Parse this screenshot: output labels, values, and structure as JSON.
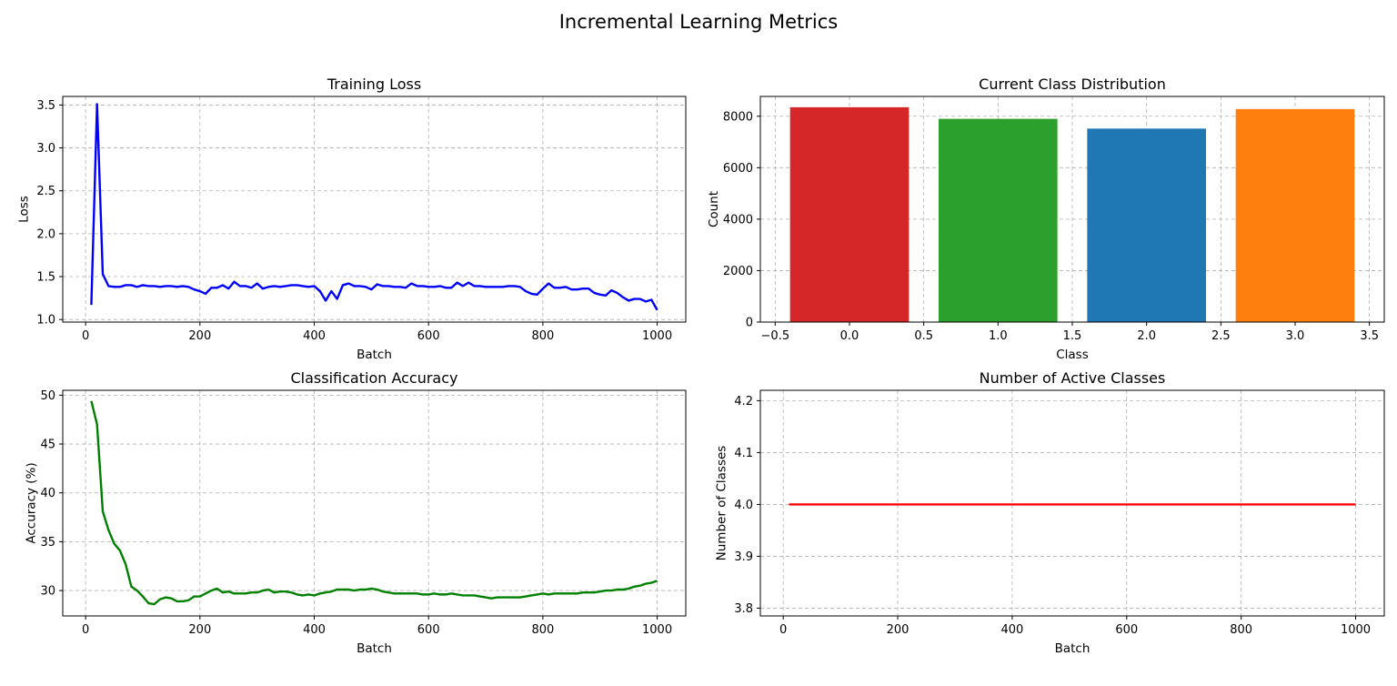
{
  "figure_title": "Incremental Learning Metrics",
  "colors": {
    "loss_line": "#0000ff",
    "accuracy_line": "#008000",
    "active_classes_line": "#ff0000",
    "class_0": "#d62728",
    "class_1": "#2ca02c",
    "class_2": "#1f77b4",
    "class_3": "#ff7f0e"
  },
  "chart_data": [
    {
      "id": "loss",
      "type": "line",
      "title": "Training Loss",
      "xlabel": "Batch",
      "ylabel": "Loss",
      "xlim": [
        -40,
        1050
      ],
      "ylim": [
        0.97,
        3.6
      ],
      "xticks": [
        0,
        200,
        400,
        600,
        800,
        1000
      ],
      "xtick_labels": [
        "0",
        "200",
        "400",
        "600",
        "800",
        "1000"
      ],
      "yticks": [
        1.0,
        1.5,
        2.0,
        2.5,
        3.0,
        3.5
      ],
      "ytick_labels": [
        "1.0",
        "1.5",
        "2.0",
        "2.5",
        "3.0",
        "3.5"
      ],
      "grid": true,
      "color": "#0000ff",
      "series": [
        {
          "x": [
            10,
            20,
            30,
            40,
            50,
            60,
            70,
            80,
            90,
            100,
            110,
            120,
            130,
            140,
            150,
            160,
            170,
            180,
            190,
            200,
            210,
            220,
            230,
            240,
            250,
            260,
            270,
            280,
            290,
            300,
            310,
            320,
            330,
            340,
            350,
            360,
            370,
            380,
            390,
            400,
            410,
            420,
            430,
            440,
            450,
            460,
            470,
            480,
            490,
            500,
            510,
            520,
            530,
            540,
            550,
            560,
            570,
            580,
            590,
            600,
            610,
            620,
            630,
            640,
            650,
            660,
            670,
            680,
            690,
            700,
            710,
            720,
            730,
            740,
            750,
            760,
            770,
            780,
            790,
            800,
            810,
            820,
            830,
            840,
            850,
            860,
            870,
            880,
            890,
            900,
            910,
            920,
            930,
            940,
            950,
            960,
            970,
            980,
            990,
            1000
          ],
          "y": [
            1.17,
            3.51,
            1.53,
            1.39,
            1.38,
            1.38,
            1.4,
            1.4,
            1.38,
            1.4,
            1.39,
            1.39,
            1.38,
            1.39,
            1.39,
            1.38,
            1.39,
            1.38,
            1.35,
            1.33,
            1.3,
            1.37,
            1.37,
            1.4,
            1.36,
            1.44,
            1.39,
            1.39,
            1.37,
            1.42,
            1.36,
            1.38,
            1.39,
            1.38,
            1.39,
            1.4,
            1.4,
            1.39,
            1.38,
            1.39,
            1.33,
            1.22,
            1.33,
            1.24,
            1.4,
            1.42,
            1.39,
            1.39,
            1.38,
            1.35,
            1.41,
            1.39,
            1.39,
            1.38,
            1.38,
            1.37,
            1.42,
            1.39,
            1.39,
            1.38,
            1.38,
            1.39,
            1.37,
            1.37,
            1.43,
            1.39,
            1.43,
            1.39,
            1.39,
            1.38,
            1.38,
            1.38,
            1.38,
            1.39,
            1.39,
            1.38,
            1.33,
            1.3,
            1.29,
            1.36,
            1.42,
            1.37,
            1.37,
            1.38,
            1.35,
            1.35,
            1.36,
            1.36,
            1.31,
            1.29,
            1.28,
            1.34,
            1.31,
            1.26,
            1.22,
            1.24,
            1.24,
            1.21,
            1.23,
            1.11
          ]
        }
      ]
    },
    {
      "id": "distribution",
      "type": "bar",
      "title": "Current Class Distribution",
      "xlabel": "Class",
      "ylabel": "Count",
      "categories": [
        0,
        1,
        2,
        3
      ],
      "values": [
        8350,
        7900,
        7520,
        8280
      ],
      "bar_colors": [
        "#d62728",
        "#2ca02c",
        "#1f77b4",
        "#ff7f0e"
      ],
      "bar_width": 0.8,
      "xlim": [
        -0.6,
        3.6
      ],
      "ylim": [
        0,
        8770
      ],
      "xticks": [
        -0.5,
        0.0,
        0.5,
        1.0,
        1.5,
        2.0,
        2.5,
        3.0,
        3.5
      ],
      "xtick_labels": [
        "−0.5",
        "0.0",
        "0.5",
        "1.0",
        "1.5",
        "2.0",
        "2.5",
        "3.0",
        "3.5"
      ],
      "yticks": [
        0,
        2000,
        4000,
        6000,
        8000
      ],
      "ytick_labels": [
        "0",
        "2000",
        "4000",
        "6000",
        "8000"
      ],
      "grid": true
    },
    {
      "id": "accuracy",
      "type": "line",
      "title": "Classification Accuracy",
      "xlabel": "Batch",
      "ylabel": "Accuracy (%)",
      "xlim": [
        -40,
        1050
      ],
      "ylim": [
        27.4,
        50.5
      ],
      "xticks": [
        0,
        200,
        400,
        600,
        800,
        1000
      ],
      "xtick_labels": [
        "0",
        "200",
        "400",
        "600",
        "800",
        "1000"
      ],
      "yticks": [
        30,
        35,
        40,
        45,
        50
      ],
      "ytick_labels": [
        "30",
        "35",
        "40",
        "45",
        "50"
      ],
      "grid": true,
      "color": "#008000",
      "series": [
        {
          "x": [
            10,
            20,
            30,
            40,
            50,
            60,
            70,
            80,
            90,
            100,
            110,
            120,
            130,
            140,
            150,
            160,
            170,
            180,
            190,
            200,
            210,
            220,
            230,
            240,
            250,
            260,
            270,
            280,
            290,
            300,
            310,
            320,
            330,
            340,
            350,
            360,
            370,
            380,
            390,
            400,
            410,
            420,
            430,
            440,
            450,
            460,
            470,
            480,
            490,
            500,
            510,
            520,
            530,
            540,
            550,
            560,
            570,
            580,
            590,
            600,
            610,
            620,
            630,
            640,
            650,
            660,
            670,
            680,
            690,
            700,
            710,
            720,
            730,
            740,
            750,
            760,
            770,
            780,
            790,
            800,
            810,
            820,
            830,
            840,
            850,
            860,
            870,
            880,
            890,
            900,
            910,
            920,
            930,
            940,
            950,
            960,
            970,
            980,
            990,
            1000
          ],
          "y": [
            49.4,
            47.0,
            38.1,
            36.2,
            34.8,
            34.1,
            32.7,
            30.4,
            30.0,
            29.4,
            28.7,
            28.6,
            29.1,
            29.3,
            29.2,
            28.9,
            28.9,
            29.0,
            29.4,
            29.4,
            29.7,
            30.0,
            30.2,
            29.8,
            29.9,
            29.7,
            29.7,
            29.7,
            29.8,
            29.8,
            30.0,
            30.1,
            29.8,
            29.9,
            29.9,
            29.8,
            29.6,
            29.5,
            29.6,
            29.5,
            29.7,
            29.8,
            29.9,
            30.1,
            30.1,
            30.1,
            30.0,
            30.1,
            30.1,
            30.2,
            30.1,
            29.9,
            29.8,
            29.7,
            29.7,
            29.7,
            29.7,
            29.7,
            29.6,
            29.6,
            29.7,
            29.6,
            29.6,
            29.7,
            29.6,
            29.5,
            29.5,
            29.5,
            29.4,
            29.3,
            29.2,
            29.3,
            29.3,
            29.3,
            29.3,
            29.3,
            29.4,
            29.5,
            29.6,
            29.7,
            29.6,
            29.7,
            29.7,
            29.7,
            29.7,
            29.7,
            29.8,
            29.8,
            29.8,
            29.9,
            30.0,
            30.0,
            30.1,
            30.1,
            30.2,
            30.4,
            30.5,
            30.7,
            30.8,
            31.0
          ]
        }
      ]
    },
    {
      "id": "active",
      "type": "line",
      "title": "Number of Active Classes",
      "xlabel": "Batch",
      "ylabel": "Number of Classes",
      "xlim": [
        -40,
        1050
      ],
      "ylim": [
        3.785,
        4.22
      ],
      "xticks": [
        0,
        200,
        400,
        600,
        800,
        1000
      ],
      "xtick_labels": [
        "0",
        "200",
        "400",
        "600",
        "800",
        "1000"
      ],
      "yticks": [
        3.8,
        3.9,
        4.0,
        4.1,
        4.2
      ],
      "ytick_labels": [
        "3.8",
        "3.9",
        "4.0",
        "4.1",
        "4.2"
      ],
      "grid": true,
      "color": "#ff0000",
      "series": [
        {
          "x": [
            10,
            1000
          ],
          "y": [
            4.0,
            4.0
          ]
        }
      ]
    }
  ]
}
